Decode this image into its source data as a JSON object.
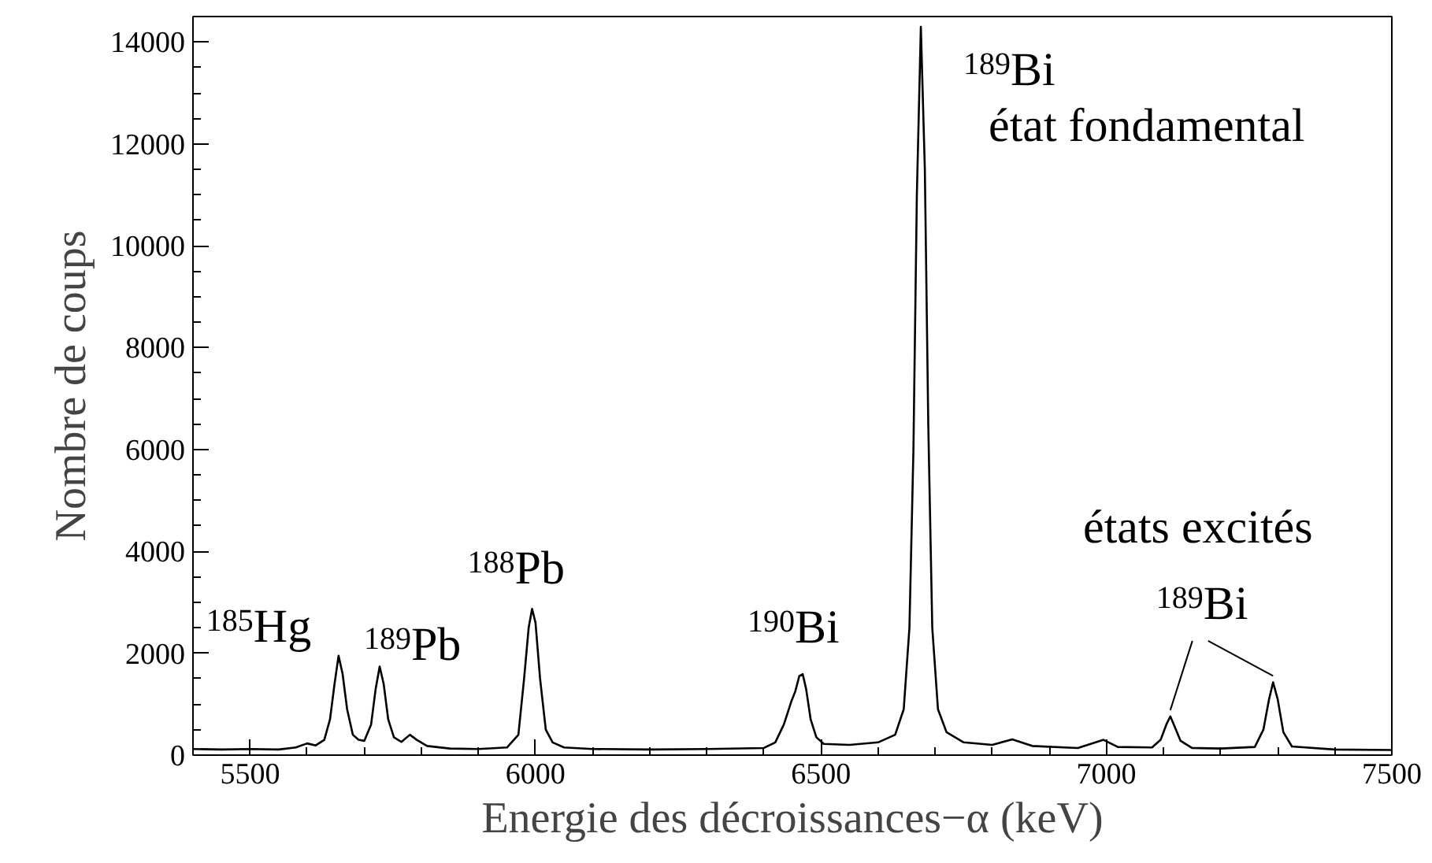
{
  "chart_data": {
    "type": "line",
    "xlabel": "Energie des décroissances−α (keV)",
    "ylabel": "Nombre de coups",
    "x": [
      5400,
      5450,
      5500,
      5550,
      5580,
      5600,
      5615,
      5630,
      5640,
      5648,
      5655,
      5662,
      5670,
      5680,
      5690,
      5700,
      5712,
      5720,
      5727,
      5734,
      5742,
      5752,
      5765,
      5780,
      5792,
      5810,
      5850,
      5900,
      5950,
      5970,
      5980,
      5988,
      5994,
      6000,
      6008,
      6018,
      6030,
      6050,
      6100,
      6200,
      6300,
      6400,
      6420,
      6435,
      6448,
      6455,
      6462,
      6468,
      6474,
      6482,
      6492,
      6505,
      6550,
      6600,
      6630,
      6645,
      6655,
      6662,
      6668,
      6675,
      6682,
      6688,
      6695,
      6705,
      6720,
      6750,
      6800,
      6835,
      6870,
      6950,
      6995,
      7020,
      7080,
      7095,
      7105,
      7112,
      7120,
      7130,
      7150,
      7200,
      7260,
      7275,
      7285,
      7292,
      7300,
      7310,
      7325,
      7400,
      7500
    ],
    "series": [
      {
        "color": "#000000",
        "values": [
          120,
          110,
          120,
          110,
          150,
          230,
          190,
          300,
          700,
          1400,
          1950,
          1600,
          900,
          400,
          300,
          280,
          600,
          1300,
          1740,
          1400,
          700,
          350,
          260,
          400,
          300,
          180,
          130,
          120,
          150,
          400,
          1500,
          2500,
          2870,
          2600,
          1500,
          500,
          250,
          150,
          120,
          110,
          120,
          140,
          250,
          600,
          1050,
          1250,
          1550,
          1590,
          1300,
          700,
          350,
          220,
          200,
          250,
          400,
          900,
          2500,
          6000,
          11000,
          14300,
          11500,
          6500,
          2500,
          900,
          450,
          250,
          200,
          310,
          180,
          140,
          300,
          160,
          150,
          300,
          600,
          760,
          550,
          280,
          140,
          130,
          160,
          500,
          1100,
          1430,
          1100,
          450,
          170,
          110,
          100
        ]
      }
    ],
    "xlim": [
      5400,
      7500
    ],
    "ylim": [
      0,
      14500
    ],
    "xticks": [
      5500,
      6000,
      6500,
      7000,
      7500
    ],
    "yticks": [
      0,
      2000,
      4000,
      6000,
      8000,
      10000,
      12000,
      14000
    ],
    "grid": false,
    "marker": "none",
    "line_style": "solid",
    "annotations": [
      {
        "text": "$^{185}$Hg",
        "x": 5655,
        "y": 1950
      },
      {
        "text": "$^{189}$Pb",
        "x": 5727,
        "y": 1740
      },
      {
        "text": "$^{188}$Pb",
        "x": 5994,
        "y": 2870
      },
      {
        "text": "$^{190}$Bi",
        "x": 6468,
        "y": 1590
      },
      {
        "text": "$^{189}$Bi",
        "x": 6675,
        "y": 14300
      },
      "état fondamental",
      "états excités",
      {
        "text": "$^{189}$Bi",
        "x": 7112,
        "y": 760
      }
    ]
  }
}
